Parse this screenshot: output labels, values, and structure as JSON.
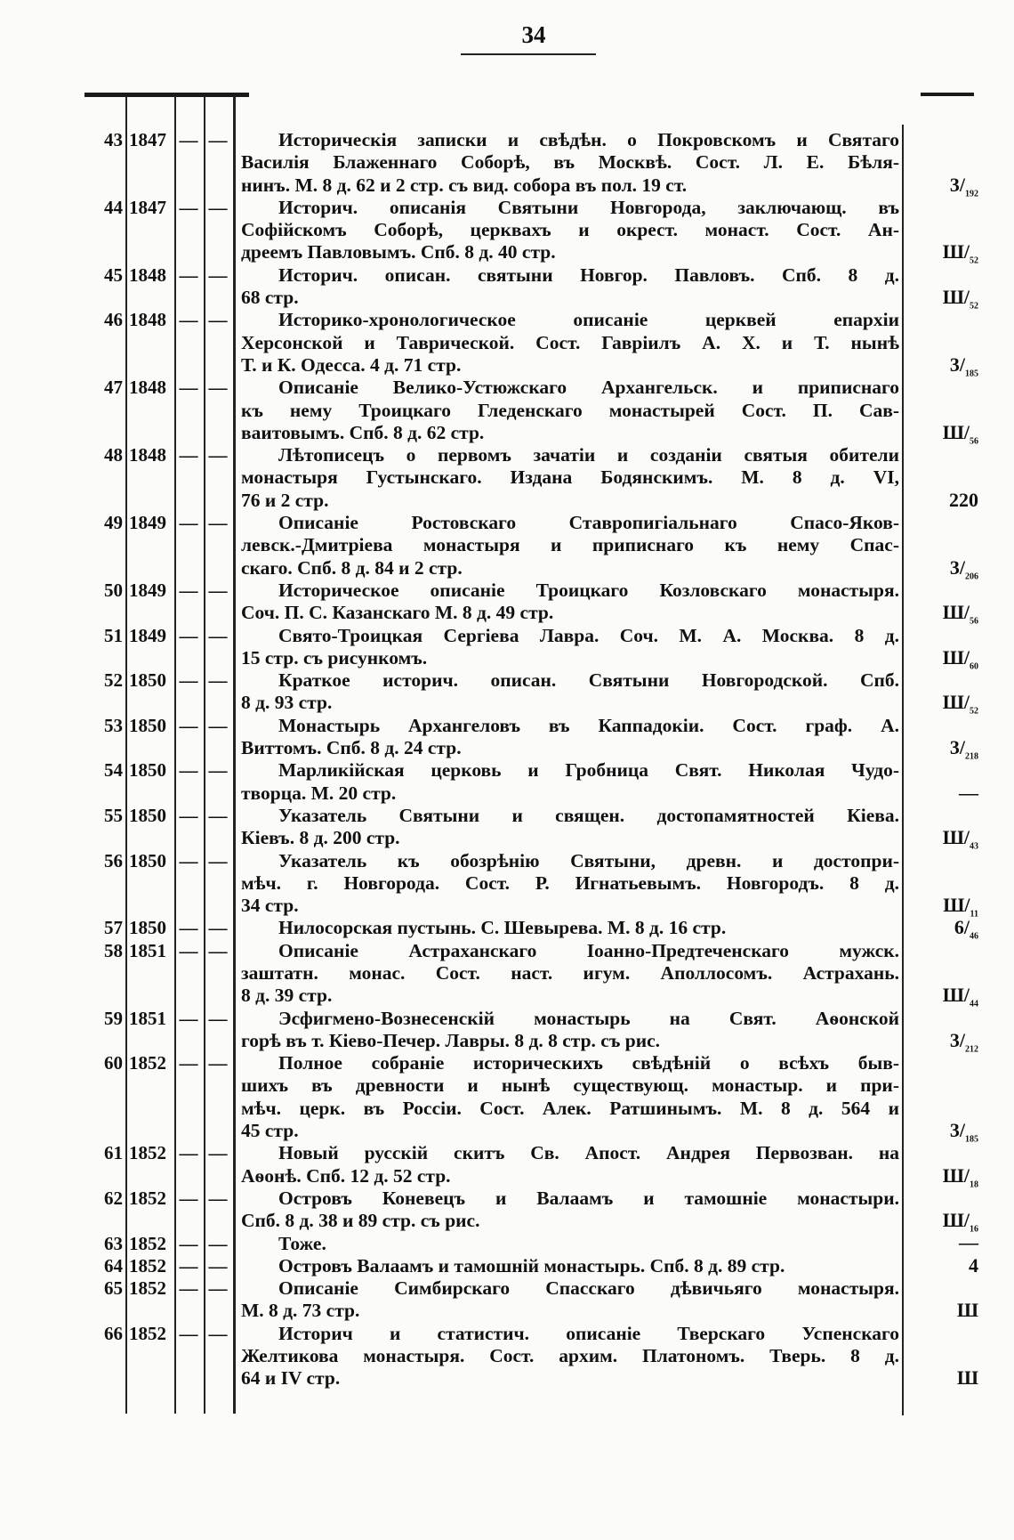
{
  "page_number": "34",
  "entries": [
    {
      "num": "43",
      "year": "1847",
      "c3": "—",
      "c4": "—",
      "lines": [
        "Историческія записки и свѣдѣн. о Покровскомъ и Святаго",
        "Василія Блаженнаго Соборѣ, въ Москвѣ. Сост. Л. Е. Бѣля-",
        "нинъ. М. 8 д. 62 и 2 стр. съ вид. собора въ пол. 19 ст."
      ],
      "mark": "3/",
      "mark_sub": "192"
    },
    {
      "num": "44",
      "year": "1847",
      "c3": "—",
      "c4": "—",
      "lines": [
        "Историч. описанія Святыни Новгорода, заключающ. въ",
        "Софійскомъ Соборѣ, церквахъ и окрест. монаст. Сост. Ан-",
        "дреемъ Павловымъ. Спб. 8 д. 40 стр."
      ],
      "mark": "Ш/",
      "mark_sub": "52"
    },
    {
      "num": "45",
      "year": "1848",
      "c3": "—",
      "c4": "—",
      "lines": [
        "Историч. описан. святыни Новгор. Павловъ. Спб. 8 д.",
        "68 стр."
      ],
      "mark": "Ш/",
      "mark_sub": "52"
    },
    {
      "num": "46",
      "year": "1848",
      "c3": "—",
      "c4": "—",
      "lines": [
        "Историко-хронологическое описаніе церквей епархіи",
        "Херсонской и Таврической. Сост. Гавріилъ А. Х. и Т. нынѣ",
        "Т. и К. Одесса. 4 д. 71 стр."
      ],
      "mark": "3/",
      "mark_sub": "185"
    },
    {
      "num": "47",
      "year": "1848",
      "c3": "—",
      "c4": "—",
      "lines": [
        "Описаніе Велико-Устюжскаго Архангельск. и приписнаго",
        "къ нему Троицкаго Гледенскаго монастырей Сост. П. Сав-",
        "ваитовымъ. Спб. 8 д. 62 стр."
      ],
      "mark": "Ш/",
      "mark_sub": "56"
    },
    {
      "num": "48",
      "year": "1848",
      "c3": "—",
      "c4": "—",
      "lines": [
        "Лѣтописецъ о первомъ зачатіи и созданіи святыя обители",
        "монастыря Густынскаго. Издана Бодянскимъ. М. 8 д. VI,",
        "76 и 2 стр."
      ],
      "mark": "220",
      "mark_sub": ""
    },
    {
      "num": "49",
      "year": "1849",
      "c3": "—",
      "c4": "—",
      "lines": [
        "Описаніе Ростовскаго Ставропигіальнаго Спасо-Яков-",
        "левск.-Дмитріева монастыря и приписнаго къ нему Спас-",
        "скаго. Спб. 8 д. 84 и 2 стр."
      ],
      "mark": "3/",
      "mark_sub": "206"
    },
    {
      "num": "50",
      "year": "1849",
      "c3": "—",
      "c4": "—",
      "lines": [
        "Историческое описаніе Троицкаго Козловскаго монастыря.",
        "Соч. П. С. Казанскаго М. 8 д. 49 стр."
      ],
      "mark": "Ш/",
      "mark_sub": "56"
    },
    {
      "num": "51",
      "year": "1849",
      "c3": "—",
      "c4": "—",
      "lines": [
        "Свято-Троицкая Сергіева Лавра. Соч. М. А. Москва. 8 д.",
        "15 стр. съ рисункомъ."
      ],
      "mark": "Ш/",
      "mark_sub": "60"
    },
    {
      "num": "52",
      "year": "1850",
      "c3": "—",
      "c4": "—",
      "lines": [
        "Краткое историч. описан. Святыни Новгородской. Спб.",
        "8 д. 93 стр."
      ],
      "mark": "Ш/",
      "mark_sub": "52"
    },
    {
      "num": "53",
      "year": "1850",
      "c3": "—",
      "c4": "—",
      "lines": [
        "Монастырь Архангеловъ въ Каппадокіи. Сост. граф. А.",
        "Виттомъ. Спб. 8 д. 24 стр."
      ],
      "mark": "3/",
      "mark_sub": "218"
    },
    {
      "num": "54",
      "year": "1850",
      "c3": "—",
      "c4": "—",
      "lines": [
        "Марликійская церковь и Гробница Свят. Николая Чудо-",
        "творца. М. 20 стр."
      ],
      "mark": "—",
      "mark_sub": ""
    },
    {
      "num": "55",
      "year": "1850",
      "c3": "—",
      "c4": "—",
      "lines": [
        "Указатель Святыни и священ. достопамятностей Кіева.",
        "Кіевъ. 8 д. 200 стр."
      ],
      "mark": "Ш/",
      "mark_sub": "43"
    },
    {
      "num": "56",
      "year": "1850",
      "c3": "—",
      "c4": "—",
      "lines": [
        "Указатель къ обозрѣнію Святыни, древн. и достопри-",
        "мѣч. г. Новгорода. Сост. Р. Игнатьевымъ. Новгородъ. 8 д.",
        "34 стр."
      ],
      "mark": "Ш/",
      "mark_sub": "11"
    },
    {
      "num": "57",
      "year": "1850",
      "c3": "—",
      "c4": "—",
      "lines": [
        "Нилосорская пустынь. С. Шевырева. М. 8 д. 16 стр."
      ],
      "mark": "6/",
      "mark_sub": "46"
    },
    {
      "num": "58",
      "year": "1851",
      "c3": "—",
      "c4": "—",
      "lines": [
        "Описаніе Астраханскаго Іоанно-Предтеченскаго мужск.",
        "заштатн. монас. Сост. наст. игум. Аполлосомъ. Астрахань.",
        "8 д. 39 стр."
      ],
      "mark": "Ш/",
      "mark_sub": "44"
    },
    {
      "num": "59",
      "year": "1851",
      "c3": "—",
      "c4": "—",
      "lines": [
        "Эсфигмено-Вознесенскій монастырь на Свят. Аѳонской",
        "горѣ въ т. Кіево-Печер. Лавры. 8 д. 8 стр. съ рис."
      ],
      "mark": "3/",
      "mark_sub": "212"
    },
    {
      "num": "60",
      "year": "1852",
      "c3": "—",
      "c4": "—",
      "lines": [
        "Полное собраніе историческихъ свѣдѣній о всѣхъ быв-",
        "шихъ въ древности и нынѣ существующ. монастыр. и при-",
        "мѣч. церк. въ Россіи. Сост. Алек. Ратшинымъ. М. 8 д. 564 и",
        "45 стр."
      ],
      "mark": "3/",
      "mark_sub": "185"
    },
    {
      "num": "61",
      "year": "1852",
      "c3": "—",
      "c4": "—",
      "lines": [
        "Новый русскій скитъ Св. Апост. Андрея Первозван. на",
        "Аѳонѣ. Спб. 12 д. 52 стр."
      ],
      "mark": "Ш/",
      "mark_sub": "18"
    },
    {
      "num": "62",
      "year": "1852",
      "c3": "—",
      "c4": "—",
      "lines": [
        "Островъ Коневецъ и Валаамъ и тамошніе монастыри.",
        "Спб. 8 д. 38 и 89 стр. съ рис."
      ],
      "mark": "Ш/",
      "mark_sub": "16"
    },
    {
      "num": "63",
      "year": "1852",
      "c3": "—",
      "c4": "—",
      "lines": [
        "Тоже."
      ],
      "mark": "—",
      "mark_sub": ""
    },
    {
      "num": "64",
      "year": "1852",
      "c3": "—",
      "c4": "—",
      "lines": [
        "Островъ Валаамъ и тамошній монастырь. Спб. 8 д. 89 стр."
      ],
      "mark": "4",
      "mark_sub": ""
    },
    {
      "num": "65",
      "year": "1852",
      "c3": "—",
      "c4": "—",
      "lines": [
        "Описаніе Симбирскаго Спасскаго дѣвичьяго монастыря.",
        "М. 8 д. 73 стр."
      ],
      "mark": "Ш",
      "mark_sub": ""
    },
    {
      "num": "66",
      "year": "1852",
      "c3": "—",
      "c4": "—",
      "lines": [
        "Историч и статистич. описаніе Тверскаго Успенскаго",
        "Желтикова монастыря. Сост. архим. Платономъ. Тверь. 8 д.",
        "64 и IV стр."
      ],
      "mark": "Ш",
      "mark_sub": ""
    }
  ]
}
